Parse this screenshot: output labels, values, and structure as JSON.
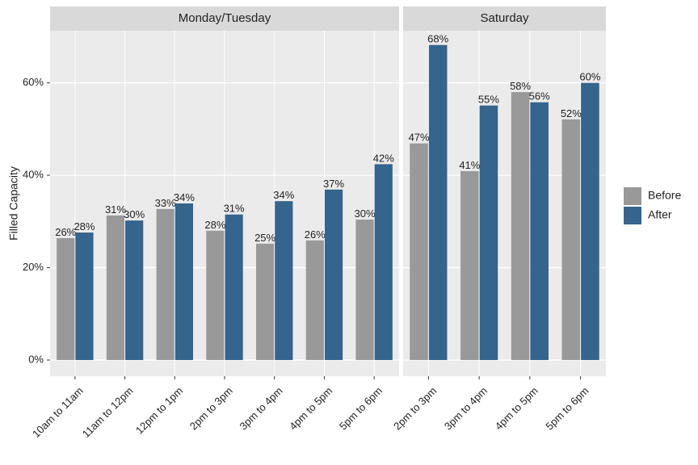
{
  "chart_data": [
    {
      "type": "bar",
      "title": "Monday/Tuesday",
      "y_label": "Filled Capacity",
      "categories": [
        "10am to 11am",
        "11am to 12pm",
        "12pm to 1pm",
        "2pm to 3pm",
        "3pm to 4pm",
        "4pm to 5pm",
        "5pm to 6pm"
      ],
      "series": [
        {
          "name": "Before",
          "color": "#999999",
          "values": [
            26.4,
            31.3,
            32.7,
            28.0,
            25.2,
            25.9,
            30.4
          ],
          "value_labels": [
            "26%",
            "31%",
            "33%",
            "28%",
            "25%",
            "26%",
            "30%"
          ]
        },
        {
          "name": "After",
          "color": "#35648c",
          "values": [
            27.6,
            30.2,
            33.9,
            31.5,
            34.4,
            36.9,
            42.4
          ],
          "value_labels": [
            "28%",
            "30%",
            "34%",
            "31%",
            "34%",
            "37%",
            "42%"
          ]
        }
      ],
      "ylim": [
        -3.5,
        71.3
      ],
      "yticks": [
        {
          "value": 0,
          "label": "0%"
        },
        {
          "value": 20,
          "label": "20%"
        },
        {
          "value": 40,
          "label": "40%"
        },
        {
          "value": 60,
          "label": "60%"
        }
      ],
      "grid": true,
      "legend": "right"
    },
    {
      "type": "bar",
      "title": "Saturday",
      "categories": [
        "2pm to 3pm",
        "3pm to 4pm",
        "4pm to 5pm",
        "5pm to 6pm"
      ],
      "series": [
        {
          "color": "#999999",
          "values": [
            46.9,
            40.9,
            58.0,
            52.1
          ],
          "value_labels": [
            "47%",
            "41%",
            "58%",
            "52%"
          ]
        },
        {
          "color": "#35648c",
          "values": [
            68.2,
            55.1,
            55.8,
            60.0
          ],
          "value_labels": [
            "68%",
            "55%",
            "56%",
            "60%"
          ]
        }
      ],
      "ylim": [
        -3.5,
        71.3
      ],
      "grid": true
    }
  ]
}
